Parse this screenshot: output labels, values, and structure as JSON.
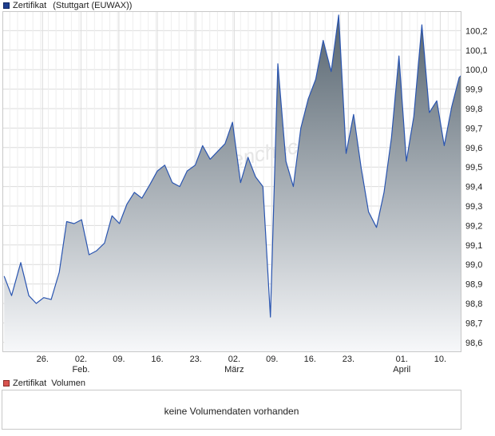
{
  "price_legend": {
    "series_label": "Zertifikat",
    "exchange_label": "(Stuttgart (EUWAX))",
    "color": "#1f3f8f"
  },
  "volume_legend": {
    "series_label": "Zertifikat",
    "volume_label": "Volumen",
    "color": "#d9534f"
  },
  "volume_panel": {
    "message": "keine Volumendaten vorhanden"
  },
  "watermark": "Aktiencheck",
  "colors": {
    "line": "#2a55b0",
    "fill_top": "#56646f",
    "fill_bottom": "#f7f8fa",
    "grid": "#dcdcdc",
    "frame": "#c8c8c8"
  },
  "chart_data": {
    "type": "area",
    "title": "",
    "xlabel": "",
    "ylabel": "",
    "ylim": [
      98.55,
      100.3
    ],
    "y_ticks": [
      98.6,
      98.7,
      98.8,
      98.9,
      99.0,
      99.1,
      99.2,
      99.3,
      99.4,
      99.5,
      99.6,
      99.7,
      99.8,
      99.9,
      100.0,
      100.1,
      100.2
    ],
    "y_tick_labels": [
      "98,6",
      "98,7",
      "98,8",
      "98,9",
      "99,0",
      "99,1",
      "99,2",
      "99,3",
      "99,4",
      "99,5",
      "99,6",
      "99,7",
      "99,8",
      "99,9",
      "100,0",
      "100,1",
      "100,2"
    ],
    "x_domain": [
      0,
      80
    ],
    "x_ticks": [
      {
        "pos": 7,
        "label": "26."
      },
      {
        "pos": 13.7,
        "label": "02.",
        "sublabel": "Feb."
      },
      {
        "pos": 20.3,
        "label": "09."
      },
      {
        "pos": 27,
        "label": "16."
      },
      {
        "pos": 33.7,
        "label": "23."
      },
      {
        "pos": 40.4,
        "label": "02.",
        "sublabel": "März"
      },
      {
        "pos": 47,
        "label": "09."
      },
      {
        "pos": 53.6,
        "label": "16."
      },
      {
        "pos": 60.3,
        "label": "23."
      },
      {
        "pos": 69.6,
        "label": "01.",
        "sublabel": "April"
      },
      {
        "pos": 76.3,
        "label": "10."
      }
    ],
    "series": [
      {
        "x": [
          0.3,
          1.6,
          3.2,
          4.6,
          5.9,
          7.2,
          8.5,
          9.9,
          11.2,
          12.5,
          13.8,
          15.1,
          16.4,
          17.8,
          19.1,
          20.4,
          21.7,
          23.0,
          24.3,
          25.7,
          27.0,
          28.3,
          29.6,
          30.9,
          32.2,
          33.6,
          34.9,
          36.2,
          37.5,
          38.8,
          40.1,
          41.5,
          42.8,
          44.1,
          45.4,
          46.7,
          48.0,
          49.4,
          50.7,
          52.0,
          53.3,
          54.6,
          55.9,
          57.3,
          58.6,
          59.9,
          61.2,
          62.5,
          63.8,
          65.2,
          66.5,
          67.8,
          69.1,
          70.4,
          71.7,
          73.1,
          74.4,
          75.7,
          77.0,
          78.3,
          79.6,
          81.0,
          82.3
        ],
        "values": [
          98.94,
          98.84,
          99.01,
          98.84,
          98.8,
          98.83,
          98.82,
          98.96,
          99.22,
          99.21,
          99.23,
          99.05,
          99.07,
          99.11,
          99.25,
          99.21,
          99.31,
          99.37,
          99.34,
          99.41,
          99.48,
          99.51,
          99.42,
          99.4,
          99.48,
          99.51,
          99.61,
          99.54,
          99.58,
          99.62,
          99.73,
          99.42,
          99.55,
          99.45,
          99.4,
          98.73,
          100.03,
          99.53,
          99.4,
          99.7,
          99.85,
          99.95,
          100.15,
          99.99,
          100.28,
          99.57,
          99.77,
          99.5,
          99.27,
          99.19,
          99.37,
          99.65,
          100.07,
          99.53,
          99.76,
          100.23,
          99.78,
          99.84,
          99.61,
          99.81,
          99.96,
          100.0,
          99.91
        ]
      }
    ]
  }
}
